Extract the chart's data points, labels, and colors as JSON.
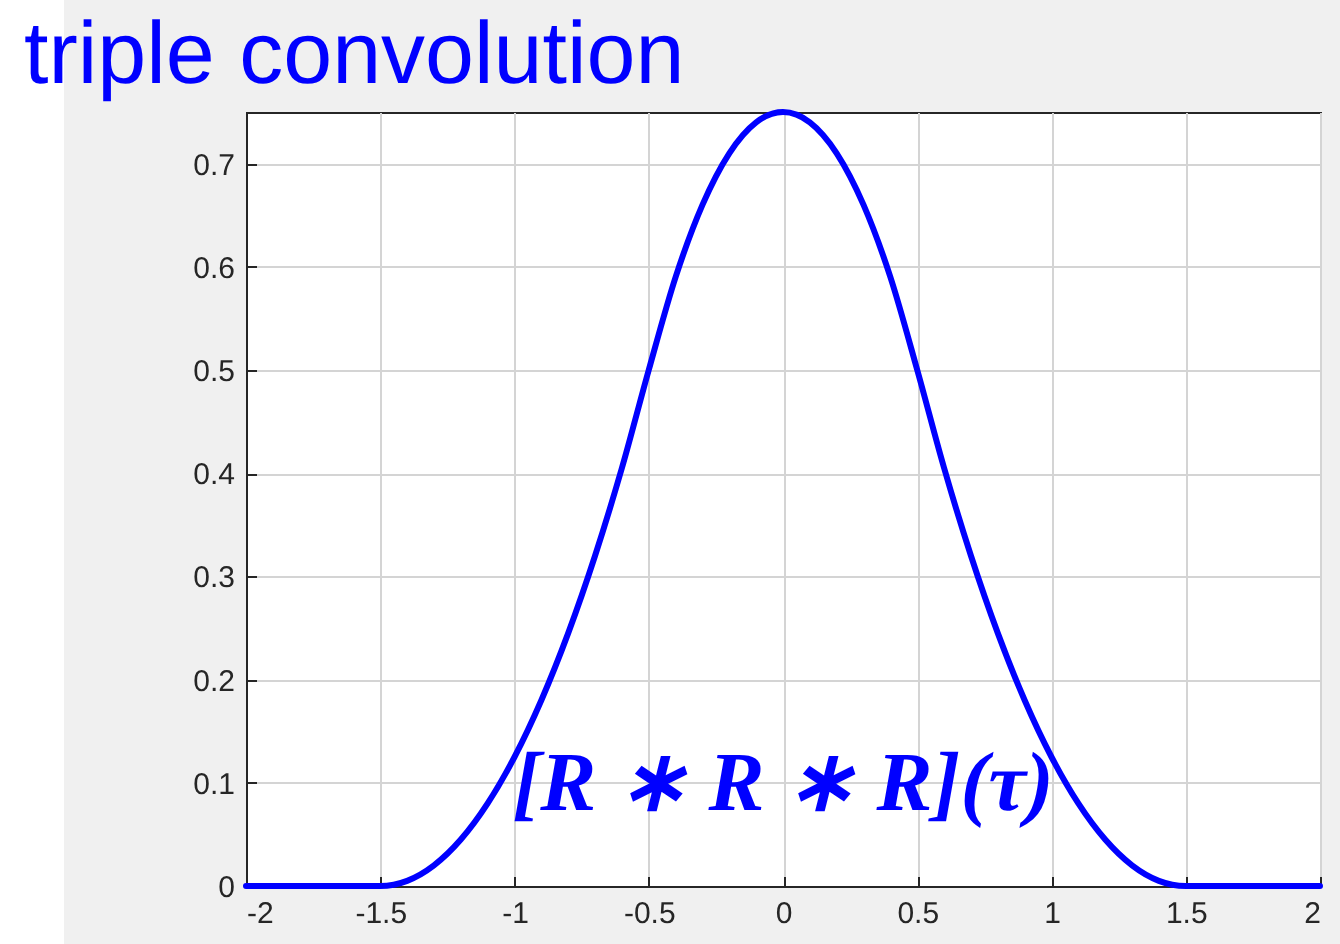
{
  "chart_data": {
    "type": "line",
    "title": "triple convolution",
    "annotations": [
      "[R ∗ R ∗ R](τ)"
    ],
    "x": [
      -2,
      -1.5,
      -1.4,
      -1.3,
      -1.2,
      -1.1,
      -1,
      -0.9,
      -0.8,
      -0.7,
      -0.6,
      -0.5,
      -0.4,
      -0.3,
      -0.2,
      -0.1,
      0,
      0.1,
      0.2,
      0.3,
      0.4,
      0.5,
      0.6,
      0.7,
      0.8,
      0.9,
      1,
      1.1,
      1.2,
      1.3,
      1.4,
      1.5,
      2
    ],
    "series": [
      {
        "color": "#0000ff",
        "values": [
          0,
          0,
          0.005,
          0.02,
          0.045,
          0.08,
          0.125,
          0.18,
          0.245,
          0.32,
          0.405,
          0.5,
          0.59,
          0.66,
          0.71,
          0.74,
          0.75,
          0.74,
          0.71,
          0.66,
          0.59,
          0.5,
          0.405,
          0.32,
          0.245,
          0.18,
          0.125,
          0.08,
          0.045,
          0.02,
          0.005,
          0,
          0
        ]
      }
    ],
    "xlim": [
      -2,
      2
    ],
    "ylim": [
      0,
      0.75
    ],
    "xticks": [
      -2,
      -1.5,
      -1,
      -0.5,
      0,
      0.5,
      1,
      1.5,
      2
    ],
    "yticks": [
      0,
      0.1,
      0.2,
      0.3,
      0.4,
      0.5,
      0.6,
      0.7
    ],
    "grid": true,
    "line_style": "solid"
  }
}
